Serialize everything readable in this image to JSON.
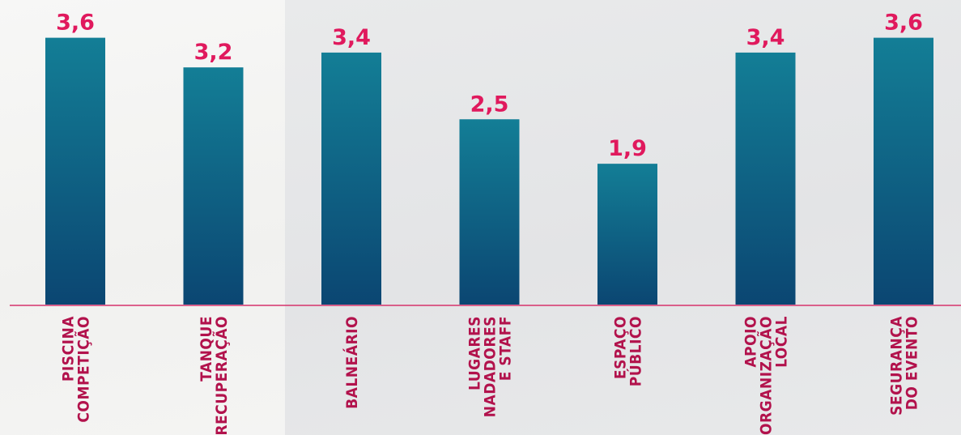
{
  "chart_data": {
    "type": "bar",
    "categories": [
      [
        "PISCINA",
        "COMPETIÇÃO"
      ],
      [
        "TANQUE",
        "RECUPERAÇÃO"
      ],
      [
        "BALNEÁRIO"
      ],
      [
        "LUGARES",
        "NADADORES",
        "E STAFF"
      ],
      [
        "ESPAÇO",
        "PÚBLICO"
      ],
      [
        "APOIO",
        "ORGANIZAÇÃO",
        "LOCAL"
      ],
      [
        "SEGURANÇA",
        "DO EVENTO"
      ]
    ],
    "values": [
      3.6,
      3.2,
      3.4,
      2.5,
      1.9,
      3.4,
      3.6
    ],
    "value_labels": [
      "3,6",
      "3,2",
      "3,4",
      "2,5",
      "1,9",
      "3,4",
      "3,6"
    ],
    "ylim": [
      0,
      4
    ],
    "grid": false,
    "title": "",
    "xlabel": "",
    "ylabel": "",
    "colors": {
      "bar_top": "#137e96",
      "bar_bottom": "#0b4672",
      "value_label": "#e0195d",
      "category_label": "#b2124c",
      "axis": "#d6336c"
    }
  }
}
